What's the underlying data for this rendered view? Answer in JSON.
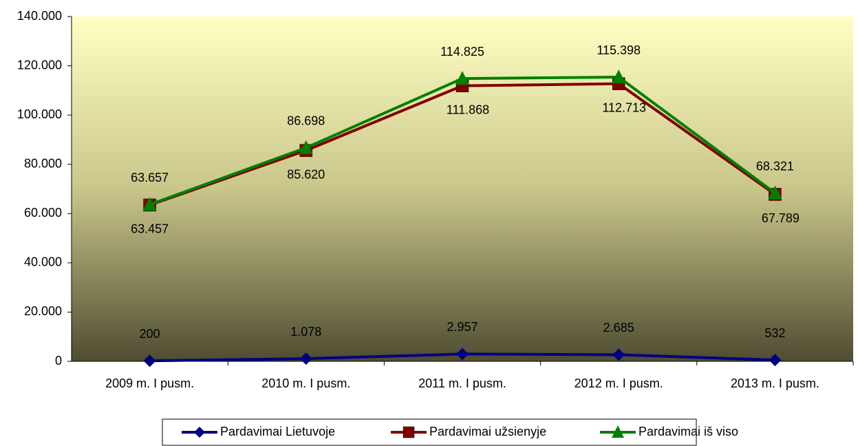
{
  "chart_data": {
    "type": "line",
    "categories": [
      "2009 m. I pusm.",
      "2010 m. I pusm.",
      "2011 m. I pusm.",
      "2012 m. I pusm.",
      "2013 m. I pusm."
    ],
    "series": [
      {
        "name": "Pardavimai Lietuvoje",
        "color": "#000080",
        "marker": "diamond",
        "values": [
          200,
          1078,
          2957,
          2685,
          532
        ],
        "value_labels": [
          "200",
          "1.078",
          "2.957",
          "2.685",
          "532"
        ]
      },
      {
        "name": "Pardavimai užsienyje",
        "color": "#800000",
        "marker": "square",
        "values": [
          63457,
          85620,
          111868,
          112713,
          67789
        ],
        "value_labels": [
          "63.457",
          "85.620",
          "111.868",
          "112.713",
          "67.789"
        ]
      },
      {
        "name": "Pardavimai iš viso",
        "color": "#008000",
        "marker": "triangle",
        "values": [
          63657,
          86698,
          114825,
          115398,
          68321
        ],
        "value_labels": [
          "63.657",
          "86.698",
          "114.825",
          "115.398",
          "68.321"
        ]
      }
    ],
    "ylim": [
      0,
      140000
    ],
    "yticks": [
      0,
      {
        "value": 20000,
        "label": "20.000"
      },
      {
        "value": 40000,
        "label": "40.000"
      },
      {
        "value": 60000,
        "label": "60.000"
      },
      {
        "value": 80000,
        "label": "80.000"
      },
      {
        "value": 100000,
        "label": "100.000"
      },
      {
        "value": 120000,
        "label": "120.000"
      },
      {
        "value": 140000,
        "label": "140.000"
      }
    ],
    "legend": "bottom"
  }
}
